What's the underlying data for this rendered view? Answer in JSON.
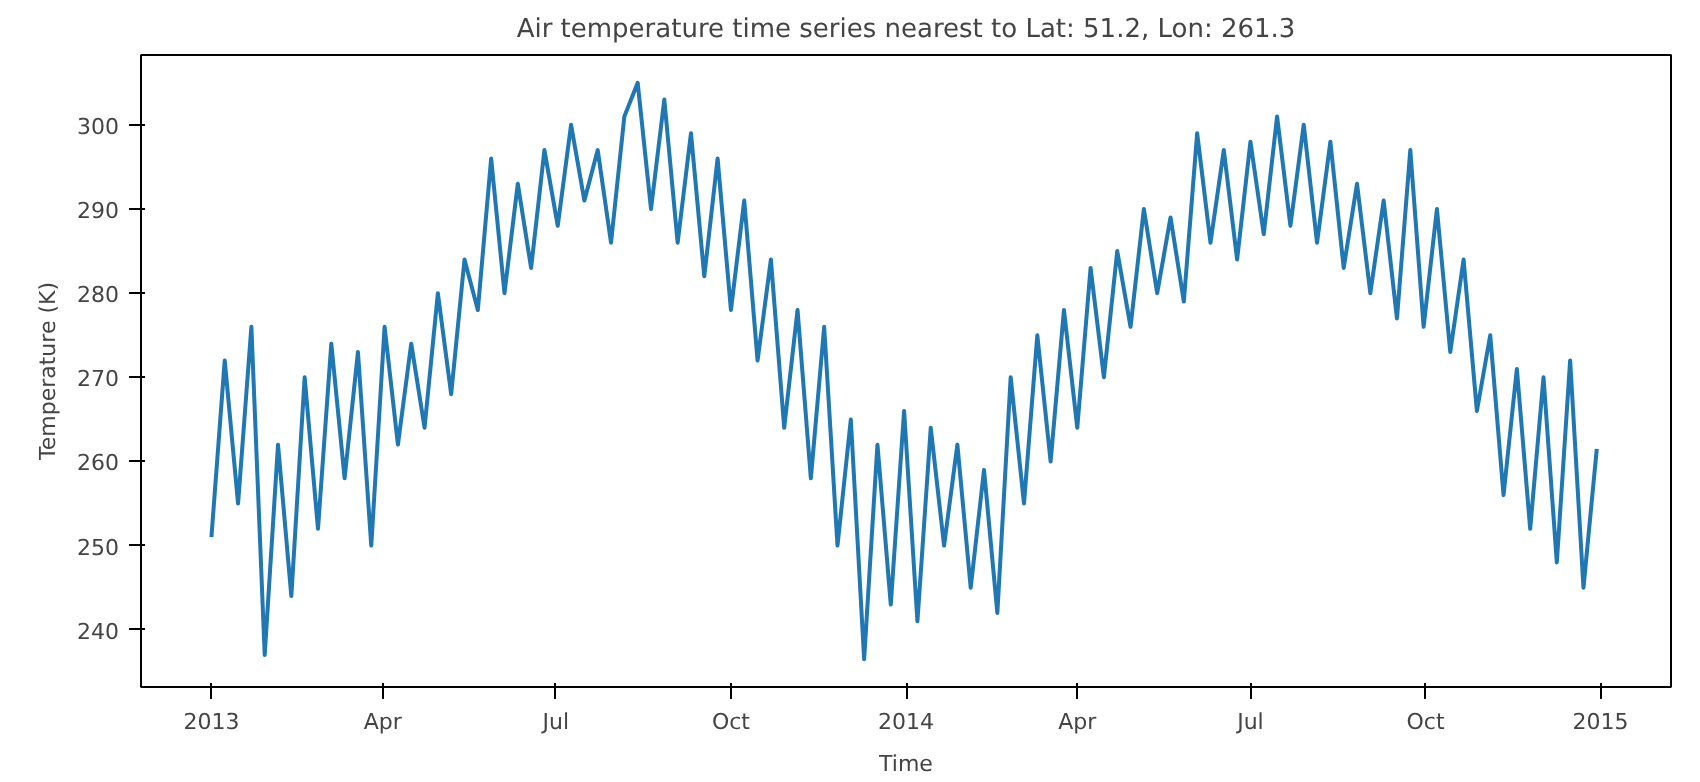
{
  "chart_data": {
    "type": "line",
    "title": "Air temperature time series nearest to Lat: 51.2, Lon: 261.3",
    "xlabel": "Time",
    "ylabel": "Temperature (K)",
    "x": [
      "2013-01-01",
      "2013-01-08",
      "2013-01-15",
      "2013-01-22",
      "2013-01-29",
      "2013-02-05",
      "2013-02-12",
      "2013-02-19",
      "2013-02-26",
      "2013-03-05",
      "2013-03-12",
      "2013-03-19",
      "2013-03-26",
      "2013-04-02",
      "2013-04-09",
      "2013-04-16",
      "2013-04-23",
      "2013-04-30",
      "2013-05-07",
      "2013-05-14",
      "2013-05-21",
      "2013-05-28",
      "2013-06-04",
      "2013-06-11",
      "2013-06-18",
      "2013-06-25",
      "2013-07-02",
      "2013-07-09",
      "2013-07-16",
      "2013-07-23",
      "2013-07-30",
      "2013-08-06",
      "2013-08-13",
      "2013-08-20",
      "2013-08-27",
      "2013-09-03",
      "2013-09-10",
      "2013-09-17",
      "2013-09-24",
      "2013-10-01",
      "2013-10-08",
      "2013-10-15",
      "2013-10-22",
      "2013-10-29",
      "2013-11-05",
      "2013-11-12",
      "2013-11-19",
      "2013-11-26",
      "2013-12-03",
      "2013-12-10",
      "2013-12-17",
      "2013-12-24",
      "2013-12-31",
      "2014-01-07",
      "2014-01-14",
      "2014-01-21",
      "2014-01-28",
      "2014-02-04",
      "2014-02-11",
      "2014-02-18",
      "2014-02-25",
      "2014-03-04",
      "2014-03-11",
      "2014-03-18",
      "2014-03-25",
      "2014-04-01",
      "2014-04-08",
      "2014-04-15",
      "2014-04-22",
      "2014-04-29",
      "2014-05-06",
      "2014-05-13",
      "2014-05-20",
      "2014-05-27",
      "2014-06-03",
      "2014-06-10",
      "2014-06-17",
      "2014-06-24",
      "2014-07-01",
      "2014-07-08",
      "2014-07-15",
      "2014-07-22",
      "2014-07-29",
      "2014-08-05",
      "2014-08-12",
      "2014-08-19",
      "2014-08-26",
      "2014-09-02",
      "2014-09-09",
      "2014-09-16",
      "2014-09-23",
      "2014-09-30",
      "2014-10-07",
      "2014-10-14",
      "2014-10-21",
      "2014-10-28",
      "2014-11-04",
      "2014-11-11",
      "2014-11-18",
      "2014-11-25",
      "2014-12-02",
      "2014-12-09",
      "2014-12-16",
      "2014-12-23",
      "2014-12-30"
    ],
    "series": [
      {
        "color": "#1f77b4",
        "values": [
          251,
          272,
          255,
          276,
          237,
          262,
          244,
          270,
          252,
          274,
          258,
          273,
          250,
          276,
          262,
          274,
          264,
          280,
          268,
          284,
          278,
          296,
          280,
          293,
          283,
          297,
          288,
          300,
          291,
          297,
          286,
          301,
          305,
          290,
          303,
          286,
          299,
          282,
          296,
          278,
          291,
          272,
          284,
          264,
          278,
          258,
          276,
          250,
          265,
          236.5,
          262,
          243,
          266,
          241,
          264,
          250,
          262,
          245,
          259,
          242,
          270,
          255,
          275,
          260,
          278,
          264,
          283,
          270,
          285,
          276,
          290,
          280,
          289,
          279,
          299,
          286,
          297,
          284,
          298,
          287,
          301,
          288,
          300,
          286,
          298,
          283,
          293,
          280,
          291,
          277,
          297,
          276,
          290,
          273,
          284,
          266,
          275,
          256,
          271,
          252,
          270,
          248,
          272,
          245,
          261.5
        ]
      }
    ],
    "xlim": [
      "2012-11-25",
      "2015-02-07"
    ],
    "ylim": [
      233.2,
      308.3
    ],
    "xticks": [
      {
        "value": "2013-01-01",
        "label": "2013"
      },
      {
        "value": "2013-04-01",
        "label": "Apr"
      },
      {
        "value": "2013-07-01",
        "label": "Jul"
      },
      {
        "value": "2013-10-01",
        "label": "Oct"
      },
      {
        "value": "2014-01-01",
        "label": "2014"
      },
      {
        "value": "2014-04-01",
        "label": "Apr"
      },
      {
        "value": "2014-07-01",
        "label": "Jul"
      },
      {
        "value": "2014-10-01",
        "label": "Oct"
      },
      {
        "value": "2015-01-01",
        "label": "2015"
      }
    ],
    "yticks": [
      240,
      250,
      260,
      270,
      280,
      290,
      300
    ],
    "grid": false,
    "marker": "none",
    "line_style": "solid"
  }
}
